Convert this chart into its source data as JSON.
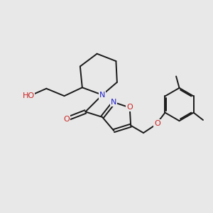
{
  "bg_color": "#e8e8e8",
  "bond_color": "#1a1a1a",
  "N_color": "#2222cc",
  "O_color": "#cc2222",
  "bond_width": 1.4,
  "figsize": [
    3.0,
    3.0
  ],
  "dpi": 100,
  "xlim": [
    0,
    10
  ],
  "ylim": [
    0,
    10
  ]
}
